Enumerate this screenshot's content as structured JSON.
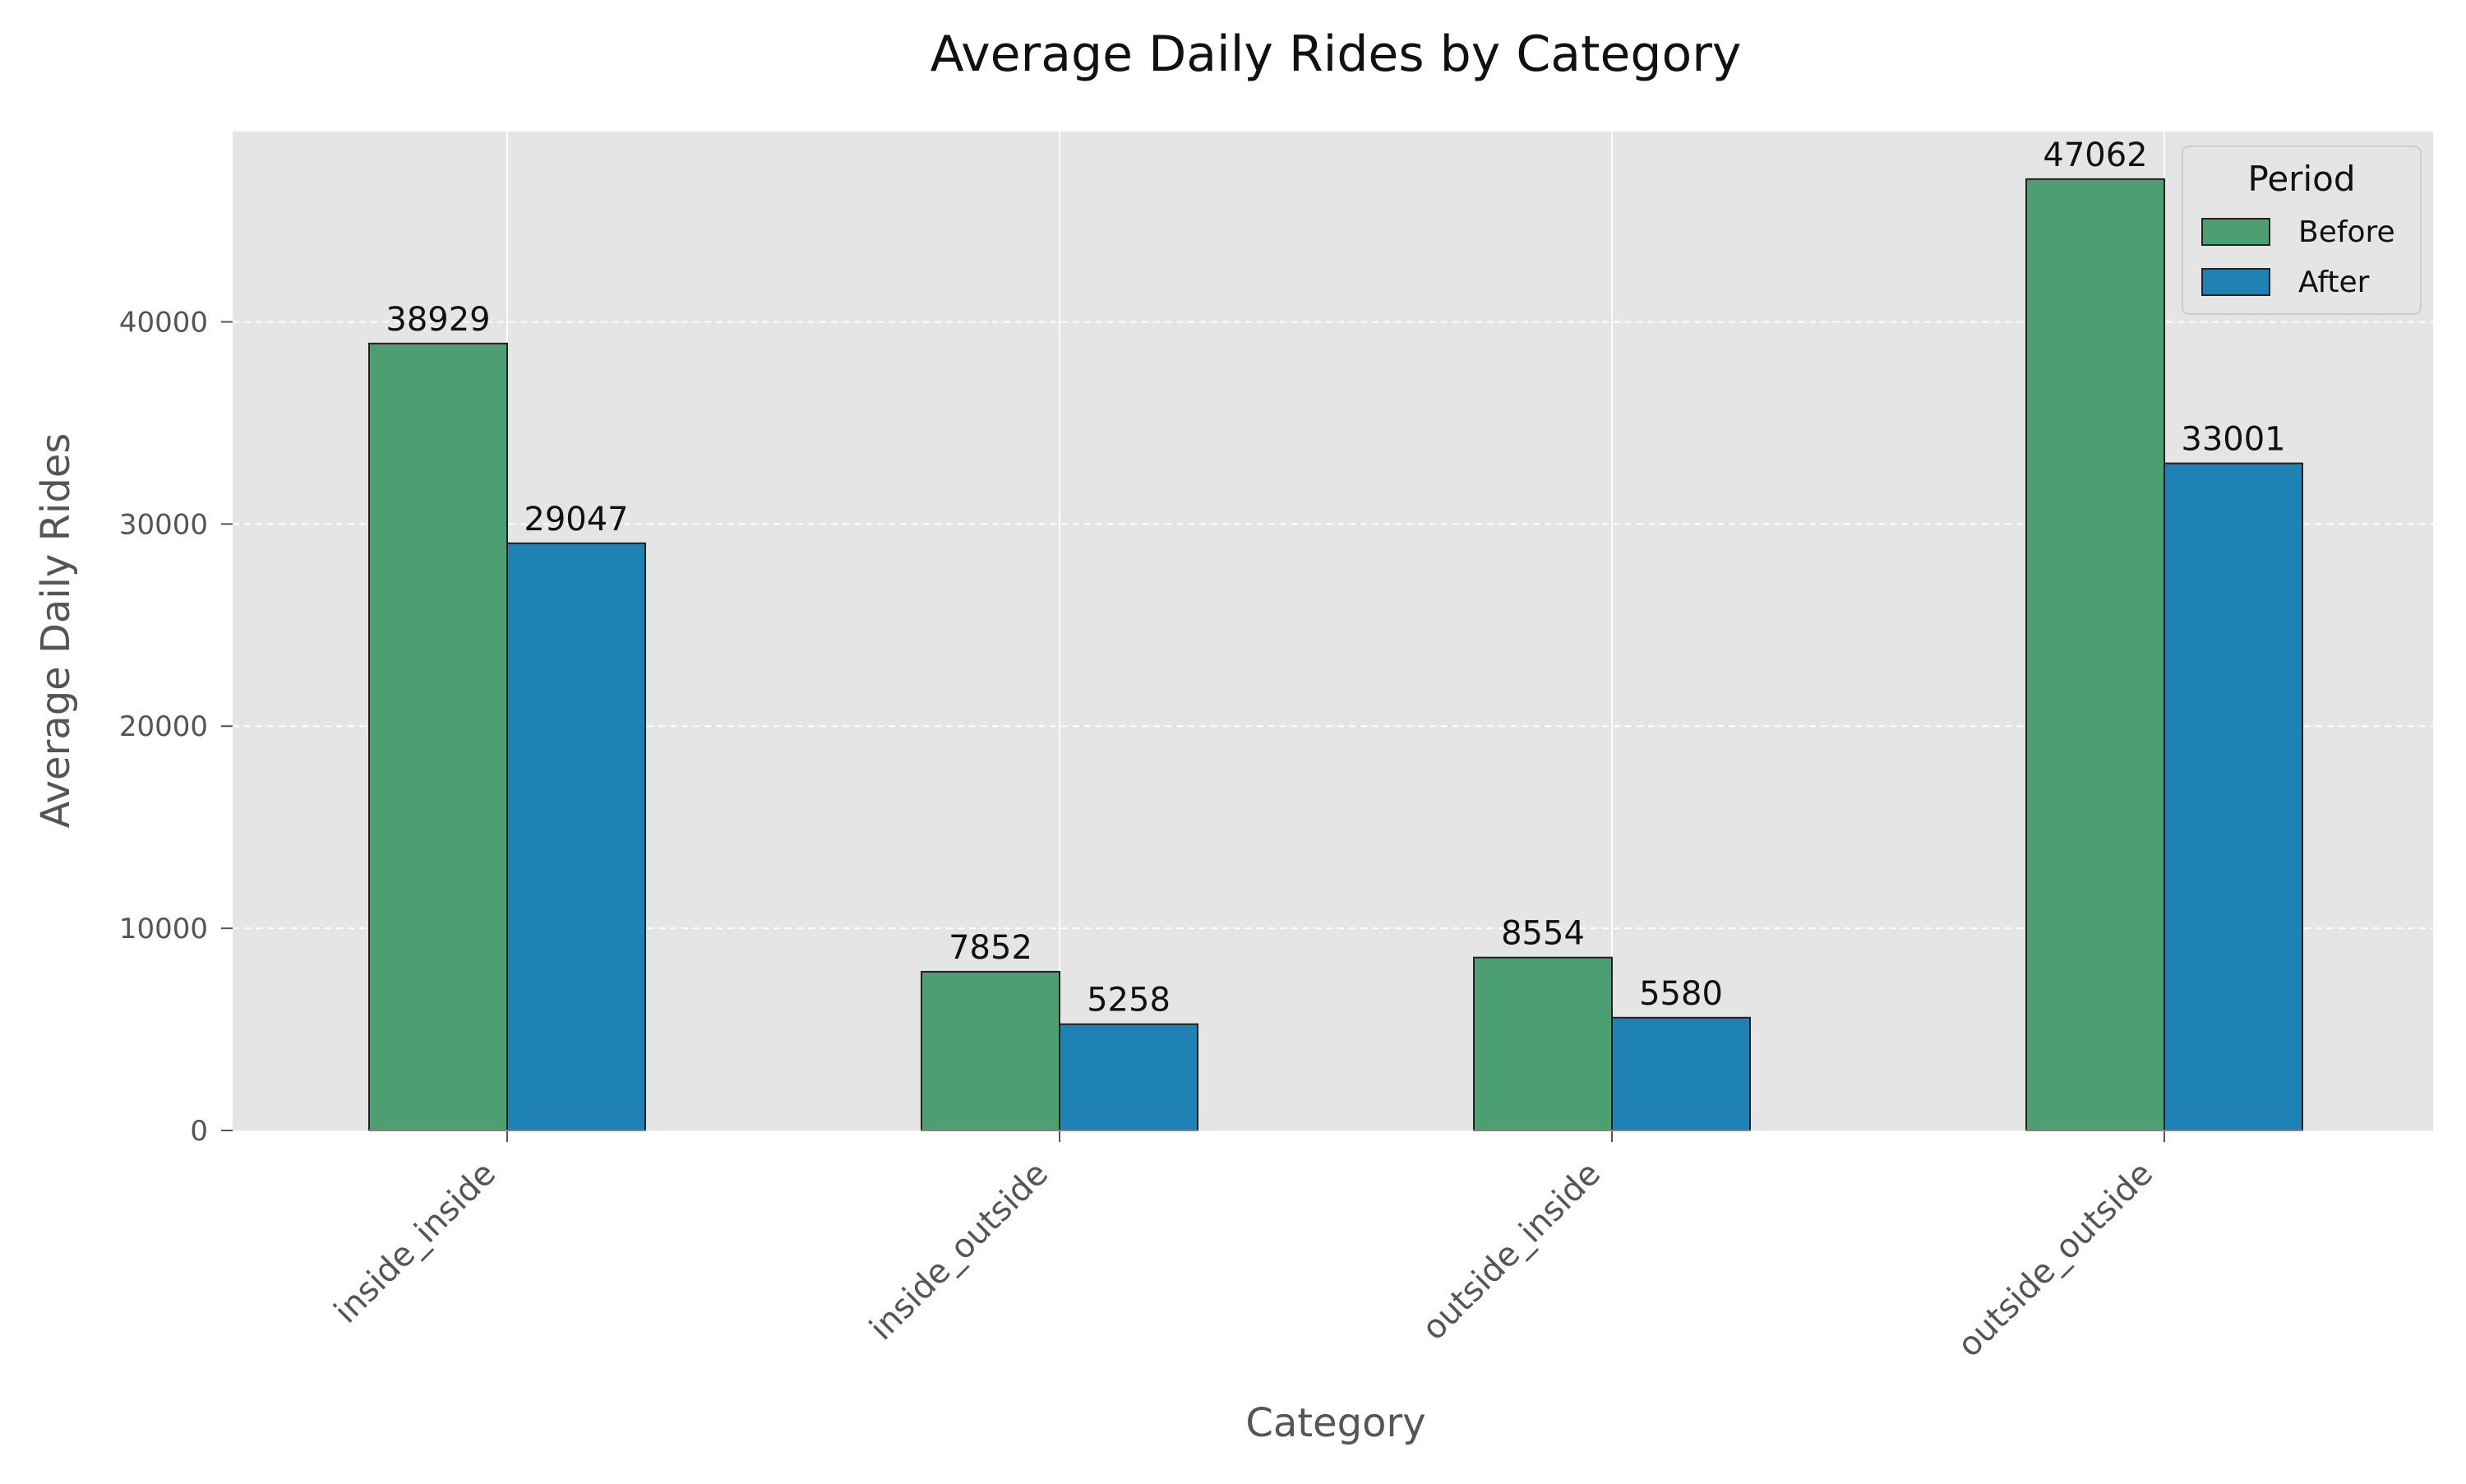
{
  "chart_data": {
    "type": "bar",
    "title": "Average Daily Rides by Category",
    "xlabel": "Category",
    "ylabel": "Average Daily Rides",
    "categories": [
      "inside_inside",
      "inside_outside",
      "outside_inside",
      "outside_outside"
    ],
    "series": [
      {
        "name": "Before",
        "values": [
          38929,
          7852,
          8554,
          47062
        ],
        "color": "#4c9f70"
      },
      {
        "name": "After",
        "values": [
          29047,
          5258,
          5580,
          33001
        ],
        "color": "#1f82b5"
      }
    ],
    "ylim": [
      0,
      49415
    ],
    "yticks": [
      0,
      10000,
      20000,
      30000,
      40000
    ],
    "ytick_labels": [
      "0",
      "10000",
      "20000",
      "30000",
      "40000"
    ],
    "legend": {
      "title": "Period",
      "position": "top-right"
    },
    "grid": {
      "y": true,
      "y_style": "dashed",
      "x": true
    },
    "colors": {
      "plot_background": "#e5e5e5",
      "grid": "#ffffff",
      "axis_text": "#555555",
      "bar_edge": "#222222"
    }
  }
}
